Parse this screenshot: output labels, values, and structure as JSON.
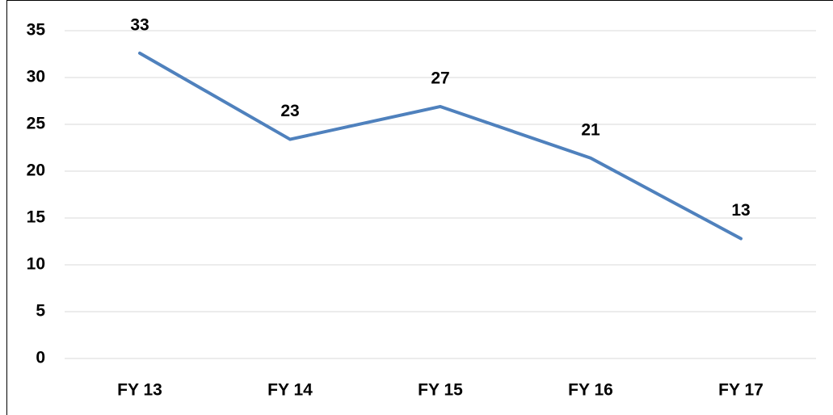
{
  "chart_data": {
    "type": "line",
    "categories": [
      "FY 13",
      "FY 14",
      "FY 15",
      "FY 16",
      "FY 17"
    ],
    "values": [
      32.6,
      23.4,
      26.9,
      21.4,
      12.8
    ],
    "value_labels": [
      "33",
      "23",
      "27",
      "21",
      "13"
    ],
    "color": "#4f81bd",
    "ylim": [
      0,
      35
    ],
    "yticks": [
      0,
      5,
      10,
      15,
      20,
      25,
      30,
      35
    ],
    "grid": true
  }
}
